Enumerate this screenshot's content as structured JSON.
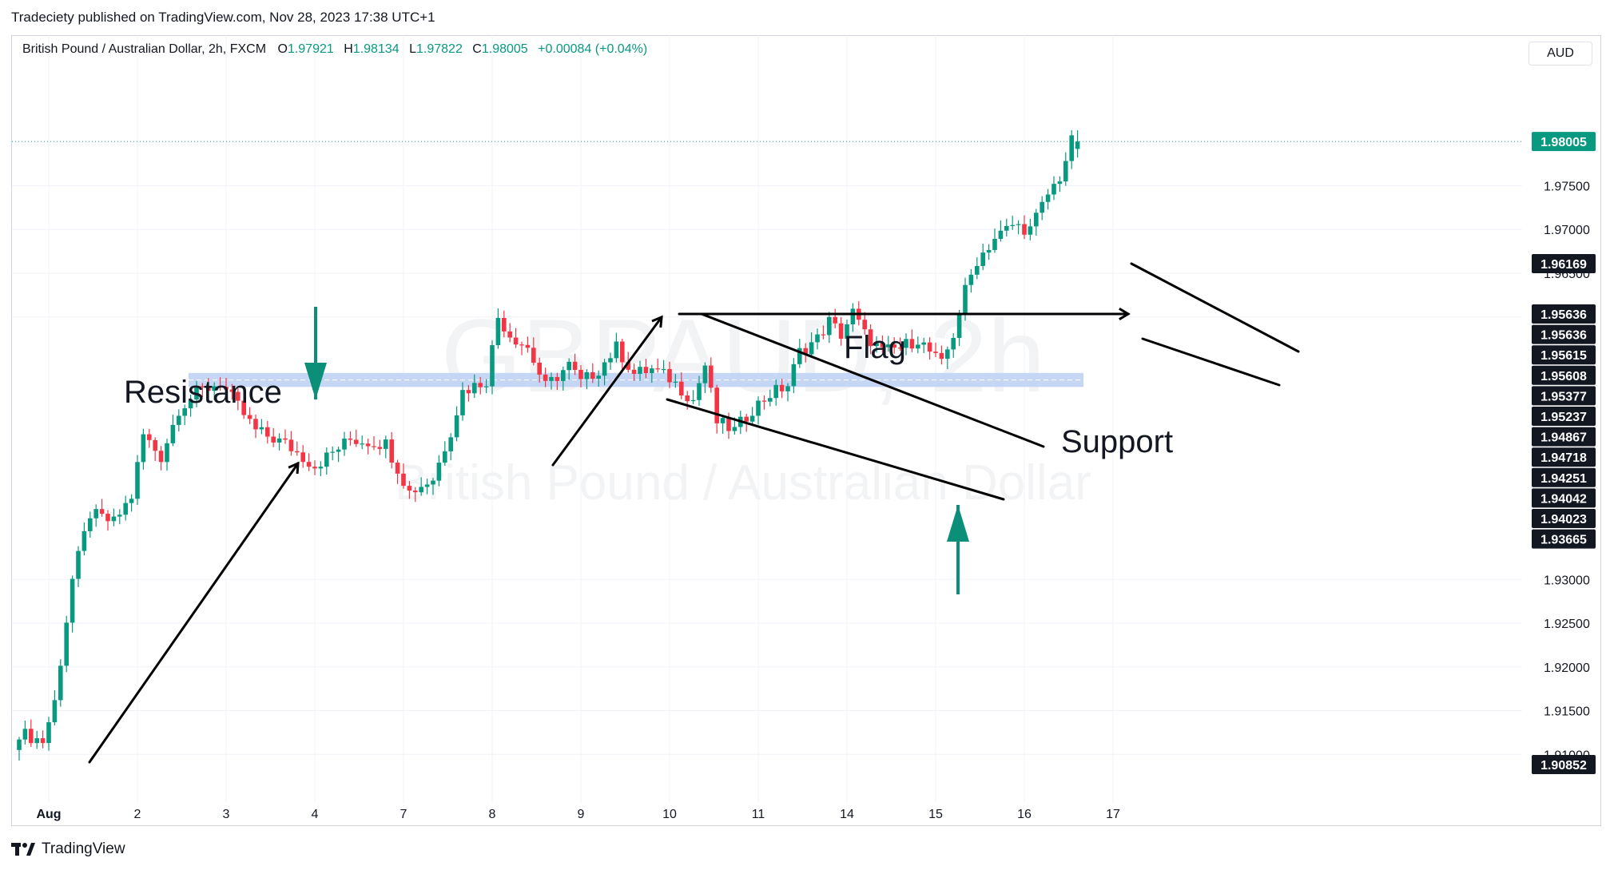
{
  "header": {
    "published": "Tradeciety published on TradingView.com, Nov 28, 2023 17:38 UTC+1"
  },
  "legend": {
    "symbol": "British Pound / Australian Dollar, 2h, FXCM",
    "open_label": "O",
    "open": "1.97921",
    "high_label": "H",
    "high": "1.98134",
    "low_label": "L",
    "low": "1.97822",
    "close_label": "C",
    "close": "1.98005",
    "change": "+0.00084 (+0.04%)"
  },
  "currency": "AUD",
  "watermark": {
    "line1": "GBPAUD, 2h",
    "line2": "British Pound / Australian Dollar"
  },
  "footer": {
    "brand": "TradingView"
  },
  "colors": {
    "up": "#089981",
    "down": "#f23645",
    "zone": "#bcd0f5",
    "price_tag": "#089981",
    "dark_tag": "#131722",
    "arrow": "#0b8f78"
  },
  "annotations": {
    "resistance": "Resistance",
    "flag": "Flag",
    "support": "Support"
  },
  "chart_data": {
    "type": "candlestick",
    "title": "",
    "xlabel": "",
    "ylabel": "",
    "ylim": [
      1.904,
      1.986
    ],
    "yticks": [
      "1.91000",
      "1.91500",
      "1.92000",
      "1.92500",
      "1.93000",
      "1.96000",
      "1.96500",
      "1.97000",
      "1.97500"
    ],
    "yticks_values": [
      1.91,
      1.915,
      1.92,
      1.925,
      1.93,
      1.96,
      1.965,
      1.97,
      1.975
    ],
    "xticks": [
      "Aug",
      "2",
      "3",
      "4",
      "7",
      "8",
      "9",
      "10",
      "11",
      "14",
      "15",
      "16",
      "17"
    ],
    "xtick_bar_index": [
      5,
      20,
      35,
      50,
      65,
      80,
      95,
      110,
      125,
      140,
      155,
      170,
      185
    ],
    "current_price": {
      "label": "1.98005",
      "value": 1.98005
    },
    "price_labels": [
      {
        "label": "1.96169",
        "value": 1.96169
      },
      {
        "label": "1.95636",
        "value": 1.95636
      },
      {
        "label": "1.95636",
        "value": 1.95636
      },
      {
        "label": "1.95615",
        "value": 1.95615
      },
      {
        "label": "1.95608",
        "value": 1.95608
      },
      {
        "label": "1.95377",
        "value": 1.95377
      },
      {
        "label": "1.95237",
        "value": 1.95237
      },
      {
        "label": "1.94867",
        "value": 1.94867
      },
      {
        "label": "1.94718",
        "value": 1.94718
      },
      {
        "label": "1.94251",
        "value": 1.94251
      },
      {
        "label": "1.94042",
        "value": 1.94042
      },
      {
        "label": "1.94023",
        "value": 1.94023
      },
      {
        "label": "1.93665",
        "value": 1.93665
      },
      {
        "label": "1.90852",
        "value": 1.90852
      }
    ],
    "zone": {
      "top": 1.9536,
      "bottom": 1.952
    },
    "close_anchors": [
      [
        0,
        1.9125
      ],
      [
        4,
        1.9115
      ],
      [
        6,
        1.916
      ],
      [
        9,
        1.93
      ],
      [
        12,
        1.9375
      ],
      [
        16,
        1.9365
      ],
      [
        19,
        1.9395
      ],
      [
        21,
        1.9465
      ],
      [
        24,
        1.944
      ],
      [
        27,
        1.9495
      ],
      [
        30,
        1.9513
      ],
      [
        34,
        1.9525
      ],
      [
        40,
        1.947
      ],
      [
        45,
        1.9455
      ],
      [
        50,
        1.943
      ],
      [
        56,
        1.946
      ],
      [
        62,
        1.9455
      ],
      [
        66,
        1.94
      ],
      [
        70,
        1.9415
      ],
      [
        73,
        1.947
      ],
      [
        75,
        1.9515
      ],
      [
        79,
        1.9528
      ],
      [
        81,
        1.96
      ],
      [
        83,
        1.958
      ],
      [
        86,
        1.9565
      ],
      [
        89,
        1.952
      ],
      [
        93,
        1.9545
      ],
      [
        95,
        1.9525
      ],
      [
        98,
        1.954
      ],
      [
        101,
        1.9565
      ],
      [
        104,
        1.9535
      ],
      [
        107,
        1.954
      ],
      [
        110,
        1.953
      ],
      [
        114,
        1.9505
      ],
      [
        116,
        1.9545
      ],
      [
        118,
        1.948
      ],
      [
        121,
        1.947
      ],
      [
        124,
        1.9495
      ],
      [
        127,
        1.9512
      ],
      [
        130,
        1.9522
      ],
      [
        132,
        1.956
      ],
      [
        135,
        1.9575
      ],
      [
        137,
        1.9595
      ],
      [
        139,
        1.958
      ],
      [
        141,
        1.9605
      ],
      [
        143,
        1.958
      ],
      [
        146,
        1.956
      ],
      [
        149,
        1.9565
      ],
      [
        152,
        1.9575
      ],
      [
        154,
        1.956
      ],
      [
        156,
        1.9545
      ],
      [
        158,
        1.958
      ],
      [
        160,
        1.963
      ],
      [
        162,
        1.9665
      ],
      [
        165,
        1.969
      ],
      [
        168,
        1.9705
      ],
      [
        171,
        1.97
      ],
      [
        174,
        1.974
      ],
      [
        176,
        1.976
      ],
      [
        178,
        1.98
      ],
      [
        179,
        1.98005
      ]
    ],
    "bar_count": 180,
    "last_ohlc": {
      "open": 1.97921,
      "high": 1.98134,
      "low": 1.97822,
      "close": 1.98005
    }
  }
}
